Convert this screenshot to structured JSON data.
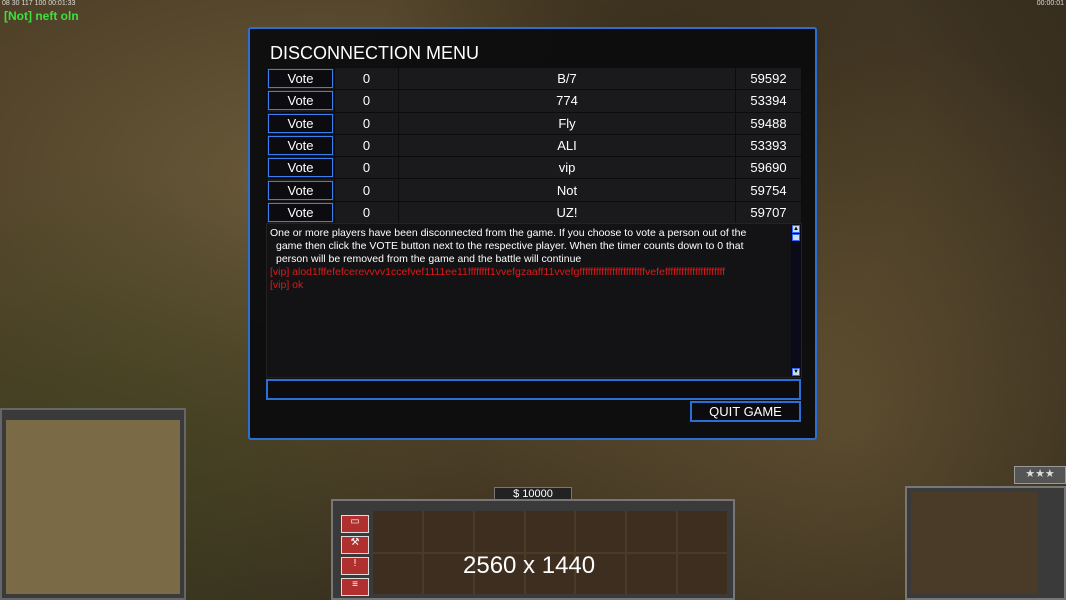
{
  "hud": {
    "top_stats": "08 30 117 100 00:01:33",
    "clock": "00:00:01",
    "chat": "[Not] neft oln"
  },
  "dialog": {
    "title": "DISCONNECTION MENU",
    "players": [
      {
        "vote": "Vote",
        "count": "0",
        "name": "B/7",
        "id": "59592"
      },
      {
        "vote": "Vote",
        "count": "0",
        "name": "774",
        "id": "53394"
      },
      {
        "vote": "Vote",
        "count": "0",
        "name": "Fly",
        "id": "59488"
      },
      {
        "vote": "Vote",
        "count": "0",
        "name": "ALI",
        "id": "53393"
      },
      {
        "vote": "Vote",
        "count": "0",
        "name": "vip",
        "id": "59690"
      },
      {
        "vote": "Vote",
        "count": "0",
        "name": "Not",
        "id": "59754"
      },
      {
        "vote": "Vote",
        "count": "0",
        "name": "UZ!",
        "id": "59707"
      }
    ],
    "message_lines": [
      "One or more players have been disconnected from the game.  If you choose to vote a person out of the",
      "game then click the VOTE button next to the respective player. When the timer counts down to 0 that",
      "person will be removed from the game and the battle will continue"
    ],
    "chat_lines": [
      "[vip] alod1fffefefcerevvvv1ccefvef1111ee11ffffffff1vvefgzaaff11vvefgffffffffffffffffffffffffvefeffffffffffffffffffffff",
      "[vip] ok"
    ],
    "chat_input": "",
    "quit_label": "QUIT GAME",
    "accent": "#2b6fd6",
    "chat_color": "#e01818"
  },
  "money": "$ 10000",
  "resolution": "2560 x 1440",
  "rank_stars": "★★★"
}
